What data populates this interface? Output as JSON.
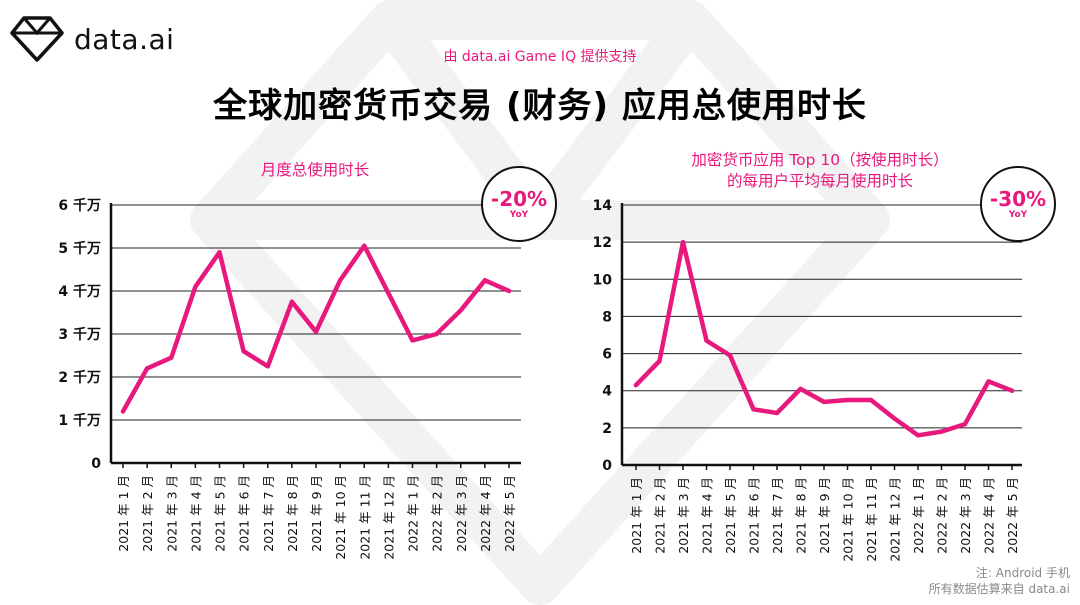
{
  "brand": {
    "name_main": "data",
    "name_ai": ".ai"
  },
  "powered_by": "由 data.ai Game IQ 提供支持",
  "title": "全球加密货币交易 (财务) 应用总使用时长",
  "colors": {
    "accent": "#e8197d",
    "axis": "#111111",
    "grid": "#222222"
  },
  "left_badge": {
    "pct": "-20%",
    "label": "YoY"
  },
  "right_badge": {
    "pct": "-30%",
    "label": "YoY"
  },
  "footnote": {
    "line1": "注: Android 手机",
    "line2": "所有数据估算来自 data.ai"
  },
  "chart_data": [
    {
      "type": "line",
      "title": "月度总使用时长",
      "categories": [
        "2021 年 1 月",
        "2021 年 2 月",
        "2021 年 3 月",
        "2021 年 4 月",
        "2021 年 5 月",
        "2021 年 6 月",
        "2021 年 7 月",
        "2021 年 8 月",
        "2021 年 9 月",
        "2021 年 10 月",
        "2021 年 11 月",
        "2021 年 12 月",
        "2022 年 1 月",
        "2022 年 2 月",
        "2022 年 3 月",
        "2022 年 4 月",
        "2022 年 5 月"
      ],
      "values": [
        12,
        22,
        24.5,
        41,
        49,
        26,
        22.5,
        37.5,
        30.5,
        42.5,
        50.5,
        39.5,
        28.5,
        30,
        35.5,
        42.5,
        40
      ],
      "yticks": [
        0,
        10,
        20,
        30,
        40,
        50,
        60
      ],
      "ytick_labels": [
        "0",
        "1 千万",
        "2 千万",
        "3 千万",
        "4 千万",
        "5 千万",
        "6 千万"
      ],
      "ylim": [
        0,
        60
      ],
      "xlabel": "",
      "ylabel": ""
    },
    {
      "type": "line",
      "title": "加密货币应用 Top 10（按使用时长）的每用户平均每月使用时长",
      "title_line1": "加密货币应用 Top 10（按使用时长）",
      "title_line2": "的每用户平均每月使用时长",
      "categories": [
        "2021 年 1 月",
        "2021 年 2 月",
        "2021 年 3 月",
        "2021 年 4 月",
        "2021 年 5 月",
        "2021 年 6 月",
        "2021 年 7 月",
        "2021 年 8 月",
        "2021 年 9 月",
        "2021 年 10 月",
        "2021 年 11 月",
        "2021 年 12 月",
        "2022 年 1 月",
        "2022 年 2 月",
        "2022 年 3 月",
        "2022 年 4 月",
        "2022 年 5 月"
      ],
      "values": [
        4.3,
        5.6,
        12.0,
        6.7,
        5.9,
        3.0,
        2.8,
        4.1,
        3.4,
        3.5,
        3.5,
        2.5,
        1.6,
        1.8,
        2.2,
        4.5,
        4.0
      ],
      "yticks": [
        0,
        2,
        4,
        6,
        8,
        10,
        12,
        14
      ],
      "ytick_labels": [
        "0",
        "2",
        "4",
        "6",
        "8",
        "10",
        "12",
        "14"
      ],
      "ylim": [
        0,
        14
      ],
      "xlabel": "",
      "ylabel": ""
    }
  ]
}
